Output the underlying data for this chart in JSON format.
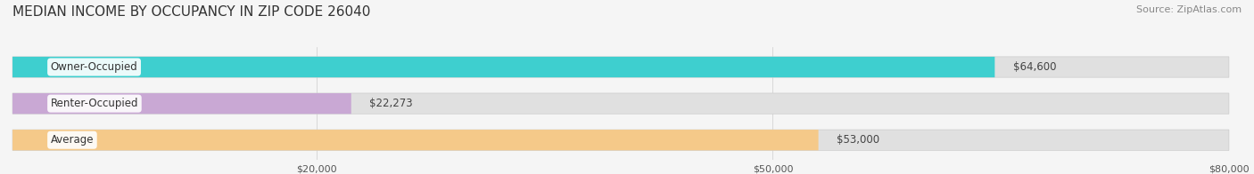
{
  "title": "MEDIAN INCOME BY OCCUPANCY IN ZIP CODE 26040",
  "source": "Source: ZipAtlas.com",
  "categories": [
    "Owner-Occupied",
    "Renter-Occupied",
    "Average"
  ],
  "values": [
    64600,
    22273,
    53000
  ],
  "bar_colors": [
    "#3ecfcf",
    "#c9a8d4",
    "#f5c A89"
  ],
  "bar_bg_color": "#e0e0e0",
  "value_labels": [
    "$64,600",
    "$22,273",
    "$53,000"
  ],
  "xlim": [
    0,
    80000
  ],
  "xticks": [
    20000,
    50000,
    80000
  ],
  "xtick_labels": [
    "$20,000",
    "$50,000",
    "$80,000"
  ],
  "title_fontsize": 11,
  "source_fontsize": 8,
  "bar_label_fontsize": 8.5,
  "value_fontsize": 8.5,
  "background_color": "#f5f5f5",
  "bar_height": 0.55
}
